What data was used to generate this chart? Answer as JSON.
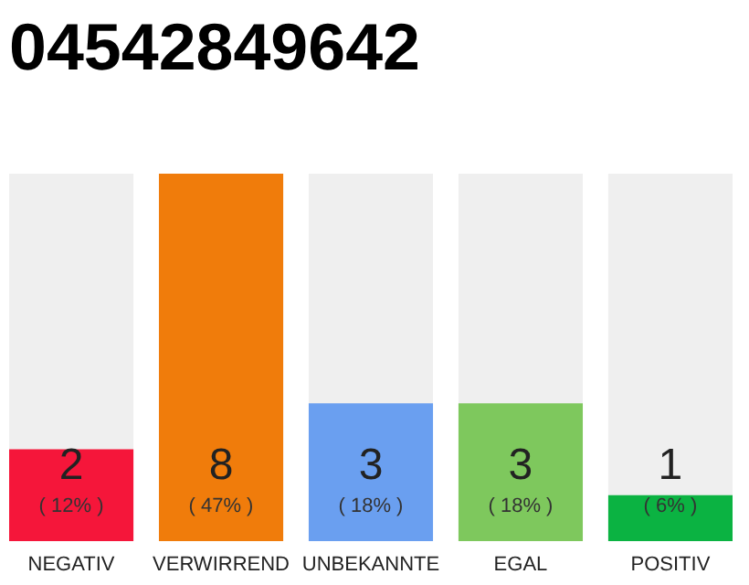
{
  "chart_data": {
    "type": "bar",
    "title": "04542849642",
    "categories": [
      "NEGATIV",
      "VERWIRREND",
      "UNBEKANNTE",
      "EGAL",
      "POSITIV"
    ],
    "values": [
      2,
      8,
      3,
      3,
      1
    ],
    "colors": [
      "#f5163a",
      "#f07c0b",
      "#6a9ff0",
      "#7ec85d",
      "#0bb342"
    ],
    "tick_labels": "x",
    "value_labels": [
      "2 ( 12% )",
      "8 ( 47% )",
      "3 ( 18% )",
      "3 ( 18% )",
      "1 ( 6% )"
    ]
  }
}
